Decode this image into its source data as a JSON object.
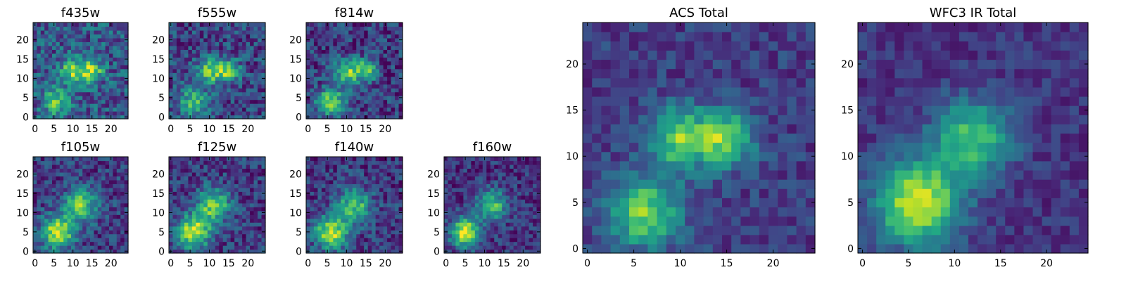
{
  "chart_data": {
    "type": "heatmap",
    "colormap": "viridis",
    "grid": false,
    "image_size": [
      25,
      25
    ],
    "panels": [
      {
        "title": "f435w",
        "xlim": [
          0,
          24
        ],
        "ylim": [
          0,
          24
        ],
        "x_ticks": [
          "0",
          "5",
          "10",
          "15",
          "20"
        ],
        "y_ticks": [
          "0",
          "5",
          "10",
          "15",
          "20"
        ],
        "sources": [
          {
            "x": 10,
            "y": 12,
            "amp": 0.55,
            "sigma": 2.2
          },
          {
            "x": 15,
            "y": 12,
            "amp": 0.6,
            "sigma": 2.0
          },
          {
            "x": 6,
            "y": 4,
            "amp": 0.45,
            "sigma": 2.6
          }
        ],
        "background": 0.45,
        "noise": 0.22
      },
      {
        "title": "f555w",
        "xlim": [
          0,
          24
        ],
        "ylim": [
          0,
          24
        ],
        "x_ticks": [
          "0",
          "5",
          "10",
          "15",
          "20"
        ],
        "y_ticks": [
          "0",
          "5",
          "10",
          "15",
          "20"
        ],
        "sources": [
          {
            "x": 10,
            "y": 12,
            "amp": 0.6,
            "sigma": 2.2
          },
          {
            "x": 15,
            "y": 12,
            "amp": 0.6,
            "sigma": 2.0
          },
          {
            "x": 6,
            "y": 4,
            "amp": 0.5,
            "sigma": 2.6
          }
        ],
        "background": 0.35,
        "noise": 0.2
      },
      {
        "title": "f814w",
        "xlim": [
          0,
          24
        ],
        "ylim": [
          0,
          24
        ],
        "x_ticks": [
          "0",
          "5",
          "10",
          "15",
          "20"
        ],
        "y_ticks": [
          "0",
          "5",
          "10",
          "15",
          "20"
        ],
        "sources": [
          {
            "x": 10,
            "y": 12,
            "amp": 0.6,
            "sigma": 2.3
          },
          {
            "x": 15,
            "y": 12,
            "amp": 0.55,
            "sigma": 2.0
          },
          {
            "x": 6,
            "y": 4,
            "amp": 0.6,
            "sigma": 2.6
          }
        ],
        "background": 0.3,
        "noise": 0.2
      },
      {
        "title": "f105w",
        "xlim": [
          0,
          24
        ],
        "ylim": [
          0,
          24
        ],
        "x_ticks": [
          "0",
          "5",
          "10",
          "15",
          "20"
        ],
        "y_ticks": [
          "0",
          "5",
          "10",
          "15",
          "20"
        ],
        "sources": [
          {
            "x": 12,
            "y": 12,
            "amp": 0.6,
            "sigma": 3.0
          },
          {
            "x": 6,
            "y": 5,
            "amp": 0.75,
            "sigma": 3.0
          }
        ],
        "background": 0.3,
        "noise": 0.18
      },
      {
        "title": "f125w",
        "xlim": [
          0,
          24
        ],
        "ylim": [
          0,
          24
        ],
        "x_ticks": [
          "0",
          "5",
          "10",
          "15",
          "20"
        ],
        "y_ticks": [
          "0",
          "5",
          "10",
          "15",
          "20"
        ],
        "sources": [
          {
            "x": 11,
            "y": 12,
            "amp": 0.6,
            "sigma": 3.0
          },
          {
            "x": 6,
            "y": 5,
            "amp": 0.75,
            "sigma": 3.0
          }
        ],
        "background": 0.3,
        "noise": 0.18
      },
      {
        "title": "f140w",
        "xlim": [
          0,
          24
        ],
        "ylim": [
          0,
          24
        ],
        "x_ticks": [
          "0",
          "5",
          "10",
          "15",
          "20"
        ],
        "y_ticks": [
          "0",
          "5",
          "10",
          "15",
          "20"
        ],
        "sources": [
          {
            "x": 12,
            "y": 12,
            "amp": 0.55,
            "sigma": 3.0
          },
          {
            "x": 6,
            "y": 5,
            "amp": 0.75,
            "sigma": 3.0
          }
        ],
        "background": 0.28,
        "noise": 0.18
      },
      {
        "title": "f160w",
        "xlim": [
          0,
          24
        ],
        "ylim": [
          0,
          24
        ],
        "x_ticks": [
          "0",
          "5",
          "10",
          "15",
          "20"
        ],
        "y_ticks": [
          "0",
          "5",
          "10",
          "15",
          "20"
        ],
        "sources": [
          {
            "x": 12,
            "y": 12,
            "amp": 0.55,
            "sigma": 2.8
          },
          {
            "x": 5,
            "y": 5,
            "amp": 0.85,
            "sigma": 2.6
          }
        ],
        "background": 0.25,
        "noise": 0.16
      },
      {
        "title": "ACS Total",
        "xlim": [
          0,
          24
        ],
        "ylim": [
          0,
          24
        ],
        "x_ticks": [
          "0",
          "5",
          "10",
          "15",
          "20"
        ],
        "y_ticks": [
          "0",
          "5",
          "10",
          "15",
          "20"
        ],
        "sources": [
          {
            "x": 10,
            "y": 12,
            "amp": 0.6,
            "sigma": 2.3
          },
          {
            "x": 15,
            "y": 12,
            "amp": 0.6,
            "sigma": 2.1
          },
          {
            "x": 6,
            "y": 4,
            "amp": 0.6,
            "sigma": 2.8
          }
        ],
        "background": 0.3,
        "noise": 0.12
      },
      {
        "title": "WFC3 IR Total",
        "xlim": [
          0,
          24
        ],
        "ylim": [
          0,
          24
        ],
        "x_ticks": [
          "0",
          "5",
          "10",
          "15",
          "20"
        ],
        "y_ticks": [
          "0",
          "5",
          "10",
          "15",
          "20"
        ],
        "sources": [
          {
            "x": 12,
            "y": 12,
            "amp": 0.55,
            "sigma": 3.0
          },
          {
            "x": 6,
            "y": 5,
            "amp": 0.8,
            "sigma": 3.2
          }
        ],
        "background": 0.25,
        "noise": 0.1
      }
    ]
  }
}
